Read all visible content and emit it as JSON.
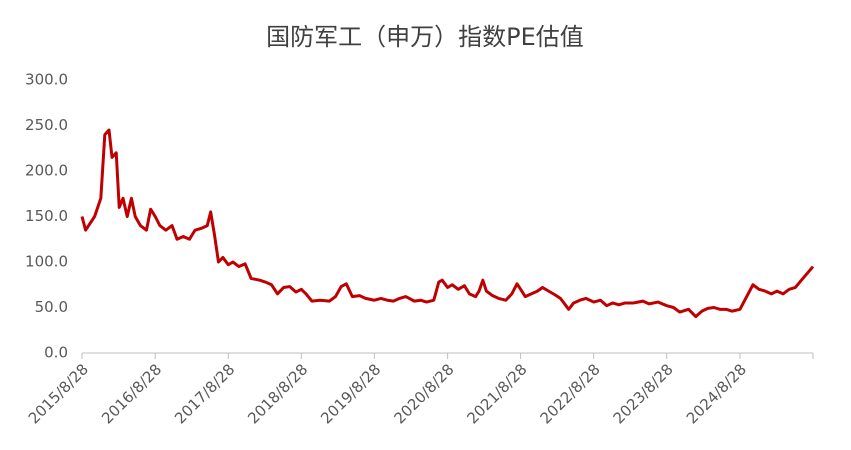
{
  "chart_data": {
    "type": "line",
    "title": "国防军工（申万）指数PE估值",
    "color": "#c00000",
    "x": [
      "2015/8/28",
      "2015/9/15",
      "2015/10/30",
      "2015/11/30",
      "2015/12/20",
      "2016/1/10",
      "2016/1/25",
      "2016/2/15",
      "2016/3/1",
      "2016/3/20",
      "2016/4/10",
      "2016/5/1",
      "2016/5/20",
      "2016/6/15",
      "2016/7/15",
      "2016/8/5",
      "2016/8/28",
      "2016/9/20",
      "2016/10/20",
      "2016/11/20",
      "2016/12/15",
      "2017/1/15",
      "2017/2/15",
      "2017/3/15",
      "2017/4/15",
      "2017/5/15",
      "2017/6/1",
      "2017/6/20",
      "2017/7/10",
      "2017/8/1",
      "2017/8/28",
      "2017/9/20",
      "2017/10/20",
      "2017/11/20",
      "2017/12/20",
      "2018/2/1",
      "2018/3/1",
      "2018/4/1",
      "2018/5/1",
      "2018/6/1",
      "2018/7/1",
      "2018/8/1",
      "2018/8/28",
      "2018/9/20",
      "2018/10/20",
      "2018/12/1",
      "2019/1/15",
      "2019/2/15",
      "2019/3/15",
      "2019/4/10",
      "2019/5/10",
      "2019/6/15",
      "2019/7/15",
      "2019/8/28",
      "2019/9/30",
      "2019/11/1",
      "2019/12/1",
      "2020/1/1",
      "2020/2/1",
      "2020/3/15",
      "2020/4/15",
      "2020/5/15",
      "2020/6/20",
      "2020/7/15",
      "2020/8/1",
      "2020/8/28",
      "2020/9/20",
      "2020/10/20",
      "2020/11/20",
      "2020/12/15",
      "2021/1/15",
      "2021/2/1",
      "2021/2/20",
      "2021/3/10",
      "2021/4/10",
      "2021/5/10",
      "2021/6/15",
      "2021/7/15",
      "2021/8/10",
      "2021/8/28",
      "2021/9/20",
      "2021/10/20",
      "2021/11/20",
      "2021/12/15",
      "2022/1/15",
      "2022/2/15",
      "2022/3/15",
      "2022/4/25",
      "2022/5/20",
      "2022/6/20",
      "2022/7/20",
      "2022/8/28",
      "2022/10/1",
      "2022/11/1",
      "2022/12/1",
      "2023/1/1",
      "2023/2/1",
      "2023/3/15",
      "2023/5/1",
      "2023/6/1",
      "2023/7/15",
      "2023/8/28",
      "2023/10/1",
      "2023/11/1",
      "2023/12/15",
      "2024/1/20",
      "2024/2/20",
      "2024/3/20",
      "2024/4/20",
      "2024/5/20",
      "2024/6/20",
      "2024/7/20",
      "2024/8/28",
      "2024/10/8",
      "2024/11/1",
      "2024/12/1",
      "2025/1/1",
      "2025/2/1",
      "2025/3/1",
      "2025/4/1",
      "2025/5/1",
      "2025/6/1",
      "2025/7/1",
      "2025/8/1",
      "2025/8/28"
    ],
    "values": [
      150,
      135,
      150,
      170,
      240,
      245,
      215,
      220,
      160,
      170,
      150,
      170,
      150,
      140,
      135,
      158,
      150,
      140,
      135,
      140,
      125,
      128,
      125,
      135,
      137,
      140,
      155,
      130,
      100,
      105,
      97,
      100,
      95,
      98,
      82,
      80,
      78,
      75,
      65,
      72,
      73,
      67,
      70,
      65,
      57,
      58,
      57,
      62,
      73,
      76,
      62,
      63,
      60,
      58,
      60,
      58,
      57,
      60,
      62,
      57,
      58,
      56,
      58,
      78,
      80,
      72,
      75,
      70,
      74,
      65,
      62,
      68,
      80,
      68,
      63,
      60,
      58,
      65,
      76,
      70,
      62,
      65,
      68,
      72,
      68,
      64,
      60,
      48,
      55,
      58,
      60,
      56,
      58,
      52,
      55,
      53,
      55,
      55,
      57,
      54,
      56,
      52,
      50,
      45,
      48,
      40,
      46,
      49,
      50,
      48,
      48,
      46,
      48,
      65,
      75,
      70,
      68,
      65,
      68,
      65,
      70,
      72,
      80,
      88,
      95
    ],
    "xlim": [
      "2015/8/28",
      "2025/8/28"
    ],
    "xticks": [
      "2015/8/28",
      "2016/8/28",
      "2017/8/28",
      "2018/8/28",
      "2019/8/28",
      "2020/8/28",
      "2021/8/28",
      "2022/8/28",
      "2023/8/28",
      "2024/8/28"
    ],
    "ylim": [
      0,
      300
    ],
    "yticks": [
      {
        "value": 0,
        "label": "0.0"
      },
      {
        "value": 50,
        "label": "50.0"
      },
      {
        "value": 100,
        "label": "100.0"
      },
      {
        "value": 150,
        "label": "150.0"
      },
      {
        "value": 200,
        "label": "200.0"
      },
      {
        "value": 250,
        "label": "250.0"
      },
      {
        "value": 300,
        "label": "300.0"
      }
    ],
    "grid": false
  }
}
